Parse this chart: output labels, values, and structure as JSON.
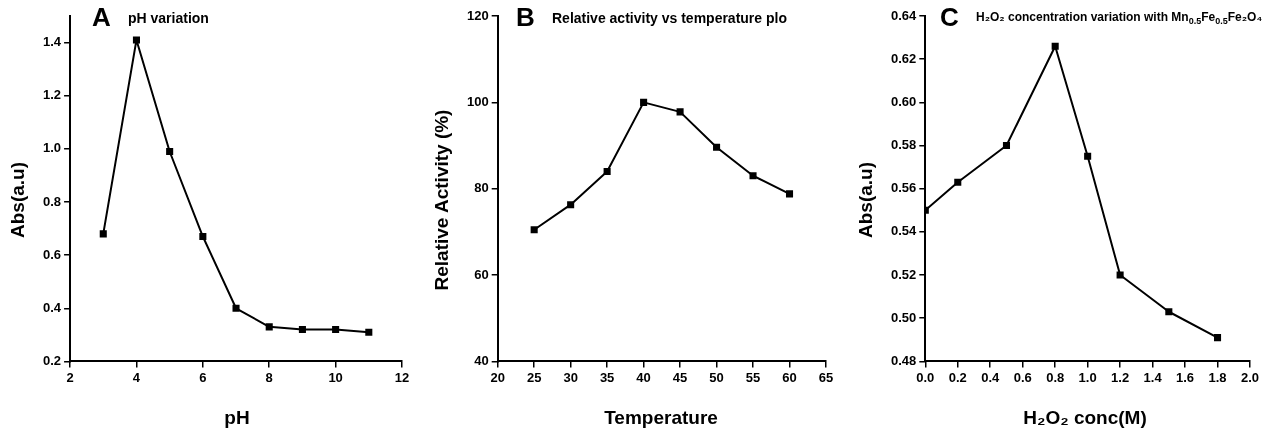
{
  "chart_data": [
    {
      "type": "line",
      "title": "pH variation",
      "annotations": [
        "A"
      ],
      "xlabel": "pH",
      "ylabel": "Abs(a.u)",
      "x": [
        3,
        4,
        5,
        6,
        7,
        8,
        9,
        10,
        11
      ],
      "xlim": [
        2,
        12
      ],
      "xticks": [
        2,
        4,
        6,
        8,
        10,
        12
      ],
      "ylim": [
        0.2,
        1.5
      ],
      "yticks": [
        {
          "value": 0.2,
          "label": "0.2"
        },
        {
          "value": 0.4,
          "label": "0.4"
        },
        {
          "value": 0.6,
          "label": "0.6"
        },
        {
          "value": 0.8,
          "label": "0.8"
        },
        {
          "value": 1.0,
          "label": "1.0"
        },
        {
          "value": 1.2,
          "label": "1.2"
        },
        {
          "value": 1.4,
          "label": "1.4"
        }
      ],
      "marker": "square",
      "line_style": "solid",
      "series": [
        {
          "color": "#000000",
          "values": [
            0.68,
            1.41,
            0.99,
            0.67,
            0.4,
            0.33,
            0.32,
            0.32,
            0.31
          ]
        }
      ]
    },
    {
      "type": "line",
      "title": "Relative activity vs temperature plo",
      "annotations": [
        "B"
      ],
      "xlabel": "Temperature",
      "ylabel": "Relative Activity (%)",
      "x": [
        25,
        30,
        35,
        40,
        45,
        50,
        55,
        60
      ],
      "xlim": [
        20,
        65
      ],
      "xticks": [
        20,
        25,
        30,
        35,
        40,
        45,
        50,
        55,
        60,
        65
      ],
      "ylim": [
        40,
        120
      ],
      "yticks": [
        40,
        60,
        80,
        100,
        120
      ],
      "marker": "square",
      "line_style": "solid",
      "series": [
        {
          "color": "#000000",
          "values": [
            70.5,
            76.3,
            84,
            100,
            97.8,
            89.6,
            83,
            78.8
          ]
        }
      ]
    },
    {
      "type": "line",
      "title": "H₂O₂ concentration variation with Mn$_{0.5}$Fe$_{0.5}$Fe₂O₄",
      "annotations": [
        "C"
      ],
      "xlabel": "H₂O₂ conc(M)",
      "ylabel": "Abs(a.u)",
      "x": [
        0,
        0.2,
        0.5,
        0.8,
        1.0,
        1.2,
        1.5,
        1.8
      ],
      "xlim": [
        0,
        2
      ],
      "xticks": [
        {
          "value": 0,
          "label": "0.0"
        },
        {
          "value": 0.2,
          "label": "0.2"
        },
        {
          "value": 0.4,
          "label": "0.4"
        },
        {
          "value": 0.6,
          "label": "0.6"
        },
        {
          "value": 0.8,
          "label": "0.8"
        },
        {
          "value": 1.0,
          "label": "1.0"
        },
        {
          "value": 1.2,
          "label": "1.2"
        },
        {
          "value": 1.4,
          "label": "1.4"
        },
        {
          "value": 1.6,
          "label": "1.6"
        },
        {
          "value": 1.8,
          "label": "1.8"
        },
        {
          "value": 2.0,
          "label": "2.0"
        }
      ],
      "ylim": [
        0.48,
        0.64
      ],
      "yticks": [
        {
          "value": 0.48,
          "label": "0.48"
        },
        {
          "value": 0.5,
          "label": "0.50"
        },
        {
          "value": 0.52,
          "label": "0.52"
        },
        {
          "value": 0.54,
          "label": "0.54"
        },
        {
          "value": 0.56,
          "label": "0.56"
        },
        {
          "value": 0.58,
          "label": "0.58"
        },
        {
          "value": 0.6,
          "label": "0.60"
        },
        {
          "value": 0.62,
          "label": "0.62"
        },
        {
          "value": 0.64,
          "label": "0.64"
        }
      ],
      "marker": "square",
      "line_style": "solid",
      "series": [
        {
          "color": "#000000",
          "values": [
            0.55,
            0.563,
            0.58,
            0.626,
            0.575,
            0.52,
            0.503,
            0.491
          ]
        }
      ]
    }
  ]
}
